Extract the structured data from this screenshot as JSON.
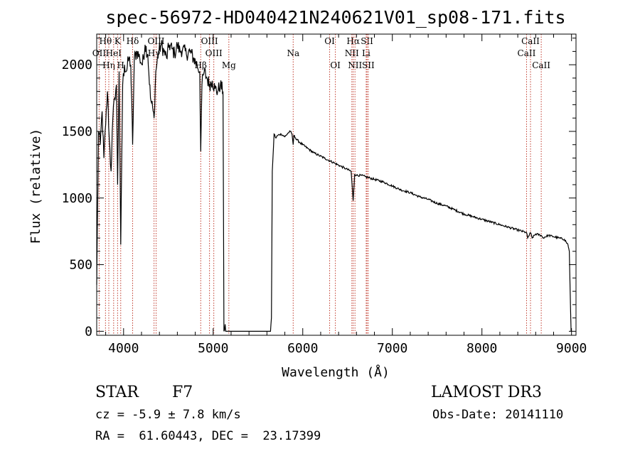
{
  "chart_data": {
    "type": "line",
    "title": "spec-56972-HD040421N240621V01_sp08-171.fits",
    "xlabel": "Wavelength (Å)",
    "ylabel": "Flux (relative)",
    "xlim": [
      3700,
      9050
    ],
    "ylim": [
      -30,
      2230
    ],
    "xticks": [
      4000,
      5000,
      6000,
      7000,
      8000,
      9000
    ],
    "yticks": [
      0,
      500,
      1000,
      1500,
      2000
    ],
    "tick_labels_x": [
      "4000",
      "5000",
      "6000",
      "7000",
      "8000",
      "9000"
    ],
    "tick_labels_y": [
      "0",
      "500",
      "1000",
      "1500",
      "2000"
    ],
    "series": [
      {
        "name": "flux",
        "x": [
          3700,
          3720,
          3740,
          3760,
          3780,
          3800,
          3820,
          3840,
          3860,
          3880,
          3900,
          3920,
          3933,
          3950,
          3968,
          3990,
          4010,
          4030,
          4060,
          4080,
          4101,
          4120,
          4150,
          4180,
          4210,
          4240,
          4270,
          4300,
          4330,
          4340,
          4360,
          4390,
          4420,
          4450,
          4480,
          4510,
          4540,
          4570,
          4600,
          4630,
          4660,
          4700,
          4740,
          4780,
          4820,
          4850,
          4861,
          4875,
          4900,
          4930,
          4960,
          4990,
          5020,
          5050,
          5080,
          5110,
          5120,
          5140,
          5180,
          5240,
          5320,
          5420,
          5520,
          5600,
          5640,
          5650,
          5660,
          5680,
          5700,
          5720,
          5760,
          5800,
          5840,
          5860,
          5880,
          5893,
          5900,
          5920,
          5960,
          6000,
          6060,
          6120,
          6180,
          6240,
          6300,
          6360,
          6420,
          6480,
          6540,
          6562,
          6580,
          6600,
          6650,
          6700,
          6750,
          6800,
          6900,
          7000,
          7100,
          7200,
          7300,
          7400,
          7500,
          7600,
          7700,
          7800,
          7900,
          8000,
          8100,
          8200,
          8300,
          8400,
          8498,
          8510,
          8542,
          8560,
          8600,
          8662,
          8680,
          8740,
          8800,
          8860,
          8920,
          8940,
          8960,
          8975,
          8985,
          8995
        ],
        "values": [
          350,
          1500,
          1400,
          1650,
          1300,
          1550,
          1800,
          1450,
          1200,
          1600,
          1750,
          1850,
          1100,
          1950,
          650,
          1850,
          2000,
          1950,
          2050,
          2000,
          1400,
          2050,
          2100,
          2050,
          2000,
          2150,
          2080,
          1750,
          1650,
          1600,
          1950,
          2100,
          2150,
          2100,
          2050,
          2150,
          2120,
          2080,
          2150,
          2100,
          2120,
          2080,
          2100,
          2050,
          2000,
          1950,
          1350,
          1850,
          1950,
          1900,
          1850,
          1880,
          1820,
          1800,
          1850,
          1800,
          0,
          0,
          0,
          0,
          0,
          0,
          0,
          0,
          0,
          100,
          1200,
          1480,
          1450,
          1470,
          1480,
          1460,
          1490,
          1500,
          1480,
          1400,
          1470,
          1450,
          1420,
          1400,
          1370,
          1340,
          1320,
          1300,
          1280,
          1260,
          1240,
          1220,
          1200,
          980,
          1180,
          1170,
          1170,
          1160,
          1150,
          1140,
          1120,
          1090,
          1060,
          1040,
          1010,
          990,
          960,
          940,
          910,
          880,
          860,
          840,
          820,
          800,
          780,
          760,
          740,
          700,
          740,
          700,
          730,
          720,
          700,
          720,
          710,
          700,
          690,
          670,
          650,
          600,
          300,
          0
        ]
      }
    ],
    "line_markers": [
      {
        "label": "Hθ",
        "x": 3798,
        "row": 1
      },
      {
        "label": "OII",
        "x": 3727,
        "row": 2
      },
      {
        "label": "Hη",
        "x": 3835,
        "row": 3
      },
      {
        "label": "K",
        "x": 3933,
        "row": 1
      },
      {
        "label": "HeI",
        "x": 3889,
        "row": 2
      },
      {
        "label": "H",
        "x": 3968,
        "row": 3
      },
      {
        "label": "Hδ",
        "x": 4101,
        "row": 1
      },
      {
        "label": "Hγ",
        "x": 4340,
        "row": 2
      },
      {
        "label": "OIII",
        "x": 4363,
        "row": 1
      },
      {
        "label": "Hβ",
        "x": 4861,
        "row": 3
      },
      {
        "label": "OIII",
        "x": 4959,
        "row": 1
      },
      {
        "label": "OIII",
        "x": 5007,
        "row": 2
      },
      {
        "label": "Mg",
        "x": 5175,
        "row": 3
      },
      {
        "label": "Na",
        "x": 5893,
        "row": 2
      },
      {
        "label": "OI",
        "x": 6300,
        "row": 1
      },
      {
        "label": "OI",
        "x": 6364,
        "row": 3
      },
      {
        "label": "Hα",
        "x": 6563,
        "row": 1
      },
      {
        "label": "NII",
        "x": 6548,
        "row": 2
      },
      {
        "label": "NII",
        "x": 6583,
        "row": 3
      },
      {
        "label": "SII",
        "x": 6717,
        "row": 1
      },
      {
        "label": "Li",
        "x": 6708,
        "row": 2
      },
      {
        "label": "SII",
        "x": 6731,
        "row": 3
      },
      {
        "label": "CaII",
        "x": 8542,
        "row": 1
      },
      {
        "label": "CaII",
        "x": 8498,
        "row": 2
      },
      {
        "label": "CaII",
        "x": 8662,
        "row": 3
      }
    ]
  },
  "info": {
    "object_type": "STAR",
    "subclass": "F7",
    "survey": "LAMOST DR3",
    "cz_text": "cz = -5.9 ± 7.8 km/s",
    "obs_date": "Obs-Date: 20141110",
    "coords": "RA =  61.60443, DEC =  23.17399"
  }
}
